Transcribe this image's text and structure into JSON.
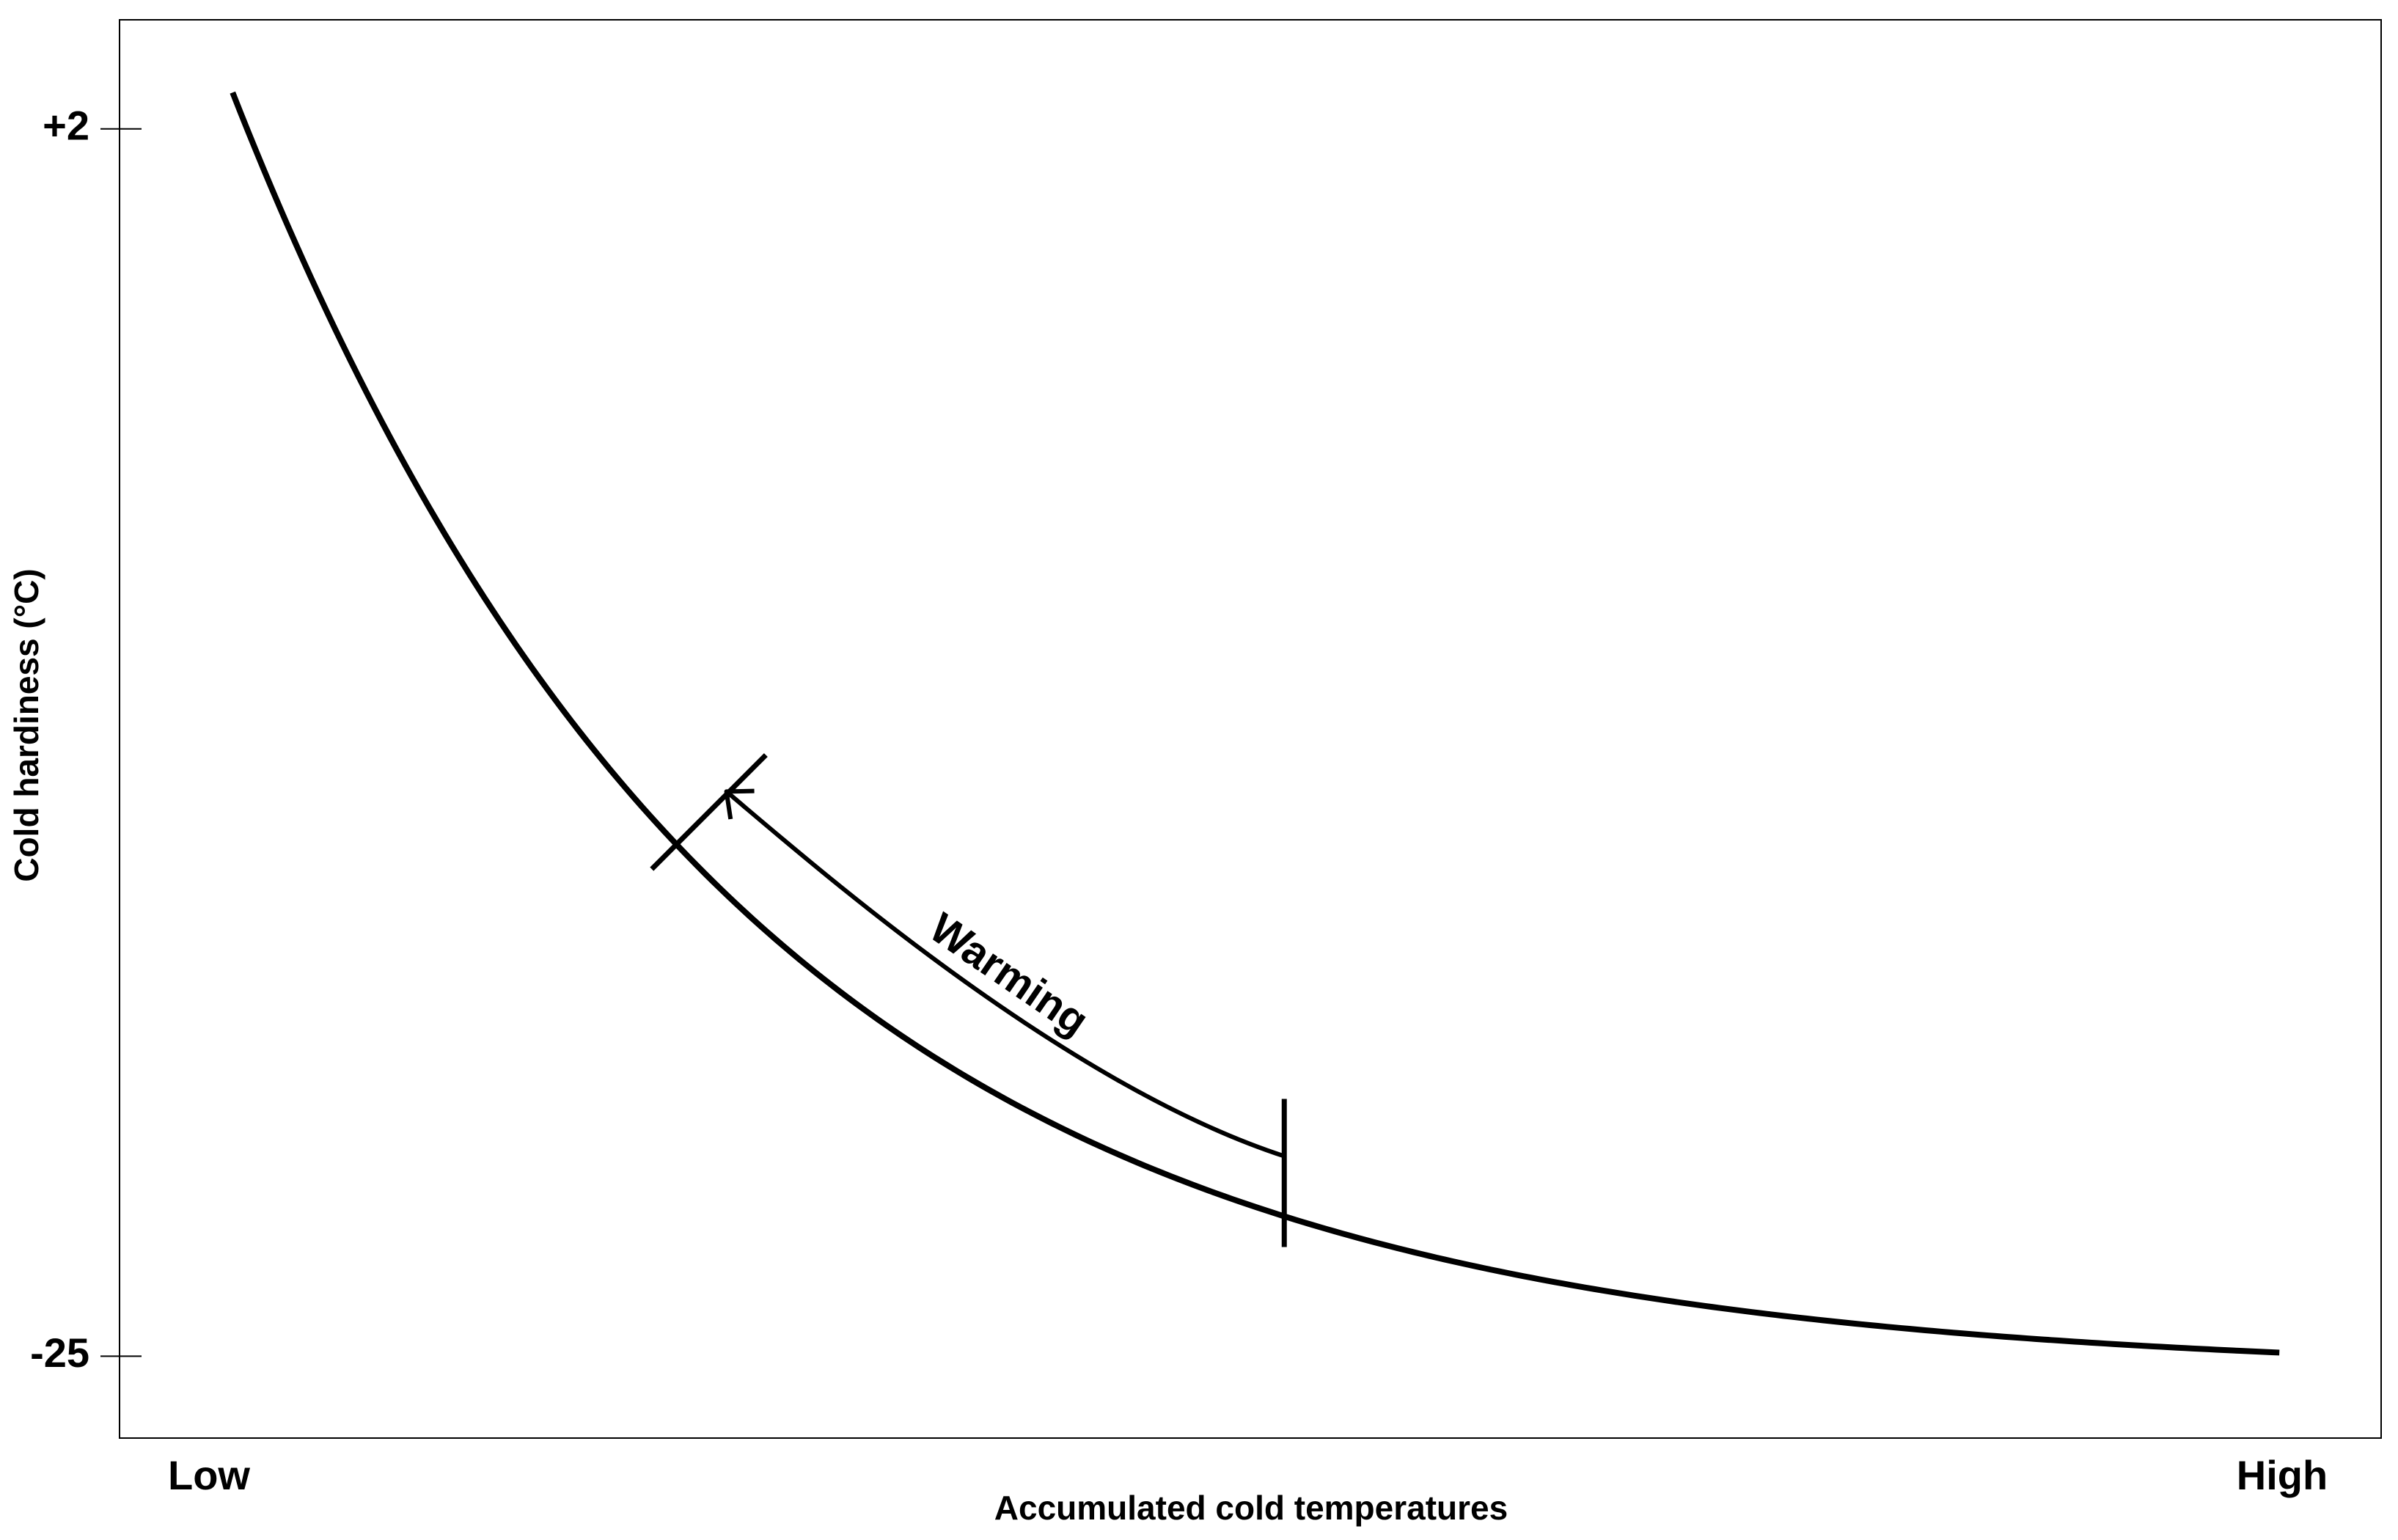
{
  "chart_data": {
    "type": "line",
    "title": "",
    "xlabel": "Accumulated cold temperatures",
    "ylabel": "Cold hardiness (°C)",
    "x_tick_labels": [
      "Low",
      "High"
    ],
    "y_ticks": [
      {
        "value": 2,
        "label": "+2"
      },
      {
        "value": -25,
        "label": "-25"
      }
    ],
    "xlim": [
      0,
      1
    ],
    "ylim": [
      -26.8,
      4.4
    ],
    "grid": false,
    "legend": "none",
    "curve": {
      "start_x": 0.05,
      "end_x": 0.955,
      "start_y": 2.8,
      "asymptote_y": -25.4,
      "decay_rate": 4.5
    },
    "annotations": [
      {
        "text": "Warming",
        "direction": "arrow from higher accumulated cold back toward lower accumulated cold",
        "from_x": 0.515,
        "to_x": 0.245
      }
    ]
  },
  "colors": {
    "background": "#ffffff",
    "line": "#000000",
    "axis": "#000000",
    "frame": "#000000"
  }
}
